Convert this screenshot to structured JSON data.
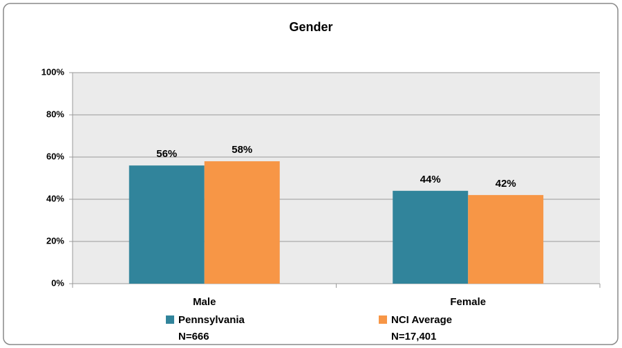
{
  "chart_data": {
    "type": "bar",
    "title": "Gender",
    "categories": [
      "Male",
      "Female"
    ],
    "series": [
      {
        "name": "Pennsylvania",
        "n_label": "N=666",
        "color": "#31849b",
        "values": [
          56,
          44
        ],
        "value_labels": [
          "56%",
          "44%"
        ]
      },
      {
        "name": "NCI Average",
        "n_label": "N=17,401",
        "color": "#f79646",
        "values": [
          58,
          42
        ],
        "value_labels": [
          "58%",
          "42%"
        ]
      }
    ],
    "ylim": [
      0,
      100
    ],
    "yticks": [
      {
        "value": 0,
        "label": "0%"
      },
      {
        "value": 20,
        "label": "20%"
      },
      {
        "value": 40,
        "label": "40%"
      },
      {
        "value": 60,
        "label": "60%"
      },
      {
        "value": 80,
        "label": "80%"
      },
      {
        "value": 100,
        "label": "100%"
      }
    ],
    "grid": true
  }
}
